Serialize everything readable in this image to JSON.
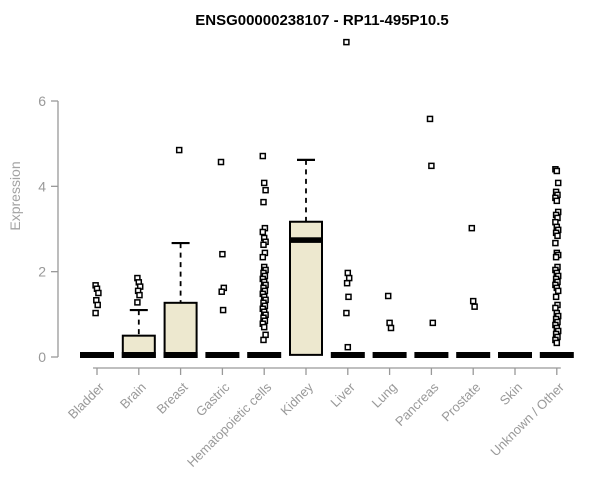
{
  "colors": {
    "background": "#ffffff",
    "box_fill": "#EDE8CF",
    "box_stroke": "#000000",
    "median_color": "#000000",
    "outlier_stroke": "#000000",
    "outlier_fill": "#ffffff",
    "axis_color": "#999999",
    "tick_label_color": "#999999",
    "axis_title_color": "#a3a3a3",
    "title_color": "#000000"
  },
  "chart_data": {
    "type": "boxplot",
    "title": "ENSG00000238107 - RP11-495P10.5",
    "ylabel": "Expression",
    "xlabel": "",
    "ylim": [
      0,
      6
    ],
    "yticks": [
      0,
      2,
      4,
      6
    ],
    "grid": "off",
    "legend": "none",
    "categories": [
      "Bladder",
      "Brain",
      "Breast",
      "Gastric",
      "Hematopoietic cells",
      "Kidney",
      "Liver",
      "Lung",
      "Pancreas",
      "Prostate",
      "Skin",
      "Unknown / Other"
    ],
    "series": [
      {
        "name": "Bladder",
        "q1": 0,
        "median": 0,
        "q3": 0,
        "whisker_low": 0,
        "whisker_high": 0,
        "outliers": [
          1.68,
          1.6,
          1.5,
          1.33,
          1.22,
          1.03
        ]
      },
      {
        "name": "Brain",
        "q1": 0,
        "median": 0,
        "q3": 0.5,
        "whisker_low": 0,
        "whisker_high": 1.1,
        "outliers": [
          1.85,
          1.75,
          1.65,
          1.55,
          1.45,
          1.28
        ]
      },
      {
        "name": "Breast",
        "q1": 0,
        "median": 0,
        "q3": 1.27,
        "whisker_low": 0,
        "whisker_high": 2.67,
        "outliers": [
          4.85
        ]
      },
      {
        "name": "Gastric",
        "q1": 0,
        "median": 0,
        "q3": 0,
        "whisker_low": 0,
        "whisker_high": 0,
        "outliers": [
          4.57,
          2.41,
          1.62,
          1.53,
          1.1
        ]
      },
      {
        "name": "Hematopoietic cells",
        "q1": 0,
        "median": 0,
        "q3": 0,
        "whisker_low": 0,
        "whisker_high": 0,
        "outliers": [
          4.71,
          4.08,
          3.91,
          3.63,
          3.02,
          2.93,
          2.79,
          2.7,
          2.63,
          2.44,
          2.34,
          2.11,
          2.04,
          1.97,
          1.9,
          1.83,
          1.76,
          1.69,
          1.62,
          1.55,
          1.48,
          1.41,
          1.34,
          1.27,
          1.2,
          1.13,
          1.06,
          0.99,
          0.92,
          0.85,
          0.78,
          0.7,
          0.52,
          0.4
        ]
      },
      {
        "name": "Kidney",
        "q1": 0.05,
        "median": 2.74,
        "q3": 3.17,
        "whisker_low": 0.05,
        "whisker_high": 4.62,
        "outliers": []
      },
      {
        "name": "Liver",
        "q1": 0,
        "median": 0,
        "q3": 0,
        "whisker_low": 0,
        "whisker_high": 0,
        "outliers": [
          7.38,
          1.97,
          1.85,
          1.73,
          1.41,
          1.03,
          0.23
        ]
      },
      {
        "name": "Lung",
        "q1": 0,
        "median": 0,
        "q3": 0,
        "whisker_low": 0,
        "whisker_high": 0,
        "outliers": [
          1.43,
          0.8,
          0.68
        ]
      },
      {
        "name": "Pancreas",
        "q1": 0,
        "median": 0,
        "q3": 0,
        "whisker_low": 0,
        "whisker_high": 0,
        "outliers": [
          5.58,
          4.48,
          0.8
        ]
      },
      {
        "name": "Prostate",
        "q1": 0,
        "median": 0,
        "q3": 0,
        "whisker_low": 0,
        "whisker_high": 0,
        "outliers": [
          3.02,
          1.31,
          1.18
        ]
      },
      {
        "name": "Skin",
        "q1": 0,
        "median": 0,
        "q3": 0,
        "whisker_low": 0,
        "whisker_high": 0,
        "outliers": []
      },
      {
        "name": "Unknown / Other",
        "q1": 0,
        "median": 0,
        "q3": 0,
        "whisker_low": 0,
        "whisker_high": 0,
        "outliers": [
          4.4,
          4.36,
          4.08,
          3.87,
          3.8,
          3.73,
          3.66,
          3.4,
          3.33,
          3.26,
          3.16,
          3.05,
          2.98,
          2.91,
          2.84,
          2.67,
          2.44,
          2.39,
          2.34,
          2.11,
          2.04,
          1.97,
          1.9,
          1.83,
          1.76,
          1.69,
          1.62,
          1.55,
          1.41,
          1.22,
          1.15,
          1.03,
          0.96,
          0.89,
          0.82,
          0.75,
          0.68,
          0.61,
          0.54,
          0.47,
          0.4,
          0.33
        ]
      }
    ]
  }
}
